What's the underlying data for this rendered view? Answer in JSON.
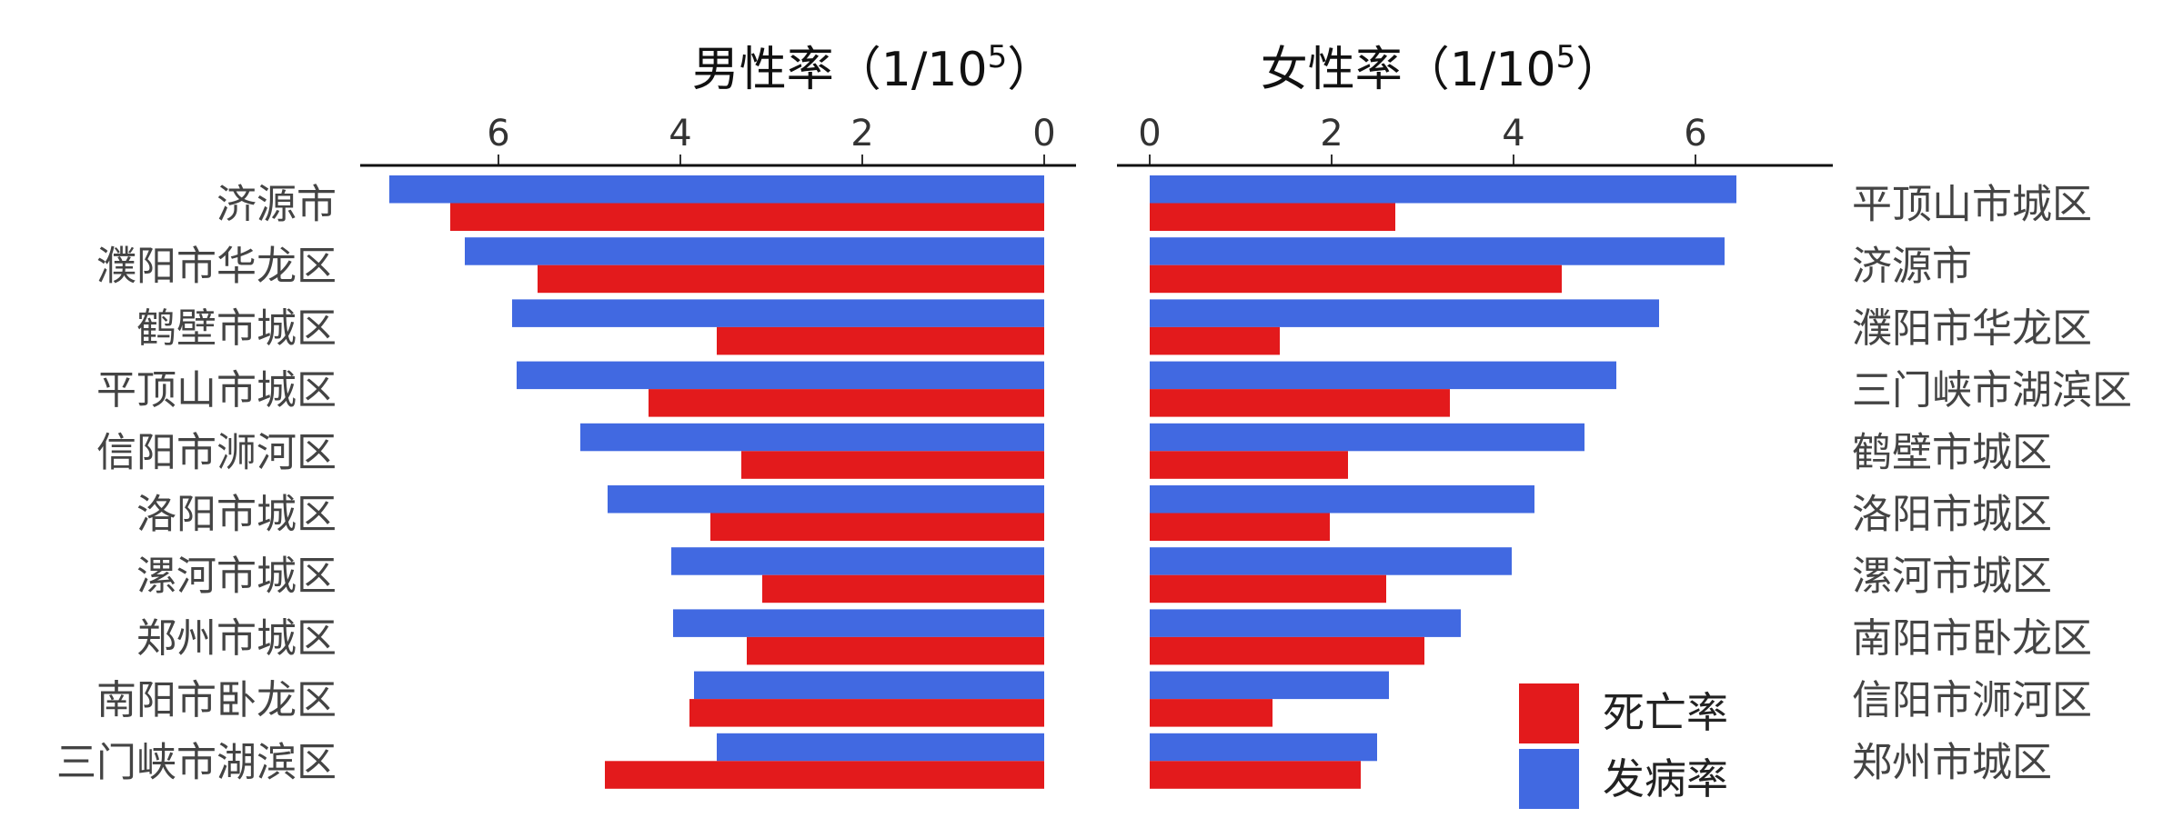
{
  "chart_data": [
    {
      "type": "bar",
      "orientation": "horizontal",
      "title": "男性率（1/10",
      "title_sup": "5",
      "title_close": "）",
      "xlim": [
        0,
        7.5
      ],
      "xdirection": "reversed",
      "ticks": [
        6,
        4,
        2,
        0
      ],
      "categories": [
        "济源市",
        "濮阳市华龙区",
        "鹤壁市城区",
        "平顶山市城区",
        "信阳市浉河区",
        "洛阳市城区",
        "漯河市城区",
        "郑州市城区",
        "南阳市卧龙区",
        "三门峡市湖滨区"
      ],
      "series": [
        {
          "name": "发病率",
          "color": "#4169E1",
          "values": [
            7.2,
            6.37,
            5.85,
            5.8,
            5.1,
            4.8,
            4.1,
            4.08,
            3.85,
            3.6
          ]
        },
        {
          "name": "死亡率",
          "color": "#E31A1C",
          "values": [
            6.53,
            5.57,
            3.6,
            4.35,
            3.33,
            3.67,
            3.1,
            3.27,
            3.9,
            4.83
          ]
        }
      ]
    },
    {
      "type": "bar",
      "orientation": "horizontal",
      "title": "女性率（1/10",
      "title_sup": "5",
      "title_close": "）",
      "xlim": [
        0,
        7.5
      ],
      "xdirection": "normal",
      "ticks": [
        0,
        2,
        4,
        6
      ],
      "categories": [
        "平顶山市城区",
        "济源市",
        "濮阳市华龙区",
        "三门峡市湖滨区",
        "鹤壁市城区",
        "洛阳市城区",
        "漯河市城区",
        "南阳市卧龙区",
        "信阳市浉河区",
        "郑州市城区"
      ],
      "series": [
        {
          "name": "发病率",
          "color": "#4169E1",
          "values": [
            6.45,
            6.32,
            5.6,
            5.13,
            4.78,
            4.23,
            3.98,
            3.42,
            2.63,
            2.5
          ]
        },
        {
          "name": "死亡率",
          "color": "#E31A1C",
          "values": [
            2.7,
            4.53,
            1.43,
            3.3,
            2.18,
            1.98,
            2.6,
            3.02,
            1.35,
            2.32
          ]
        }
      ]
    }
  ],
  "legend": {
    "position": "bottom-right",
    "items": [
      {
        "label": "死亡率",
        "color": "#E31A1C"
      },
      {
        "label": "发病率",
        "color": "#4169E1"
      }
    ]
  }
}
